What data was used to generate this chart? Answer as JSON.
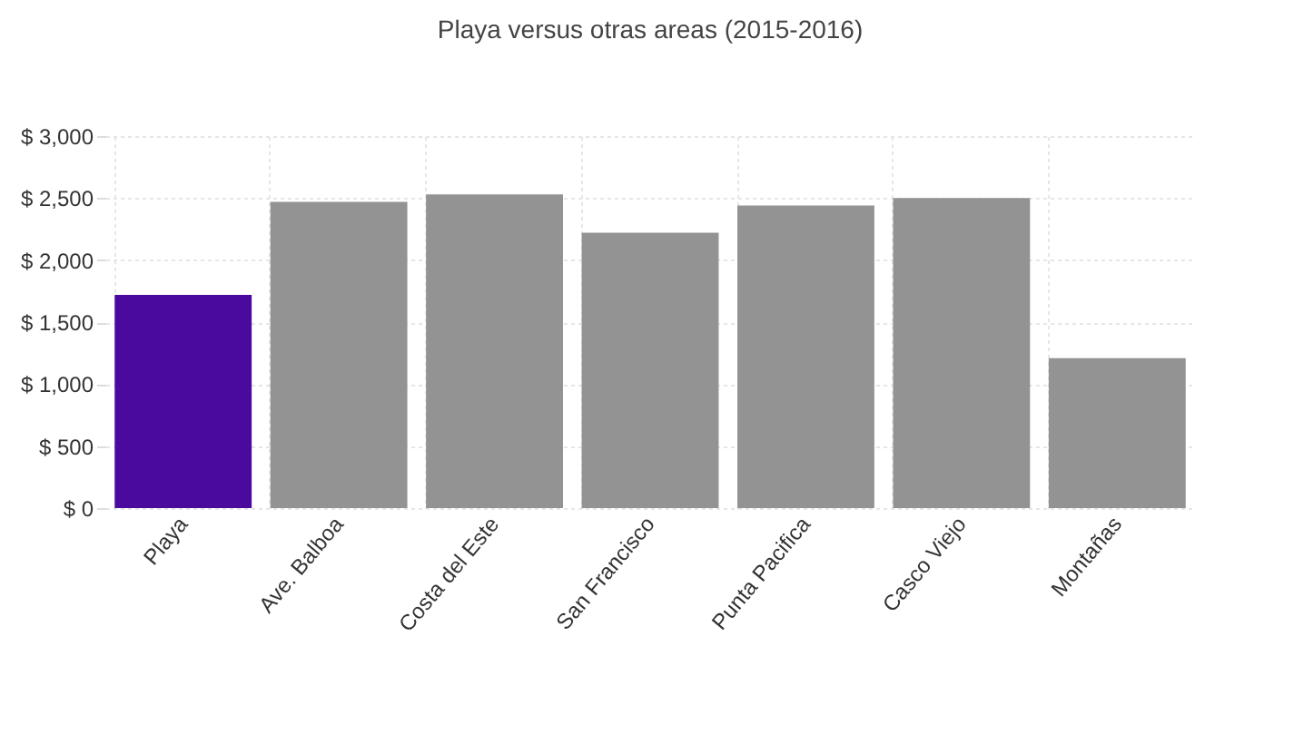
{
  "chart_data": {
    "type": "bar",
    "title": "Playa versus otras areas (2015-2016)",
    "categories": [
      "Playa",
      "Ave. Balboa",
      "Costa del Este",
      "San Francisco",
      "Punta Pacifica",
      "Casco Viejo",
      "Montañas"
    ],
    "values": [
      1720,
      2470,
      2530,
      2220,
      2440,
      2500,
      1210
    ],
    "colors": [
      "#4a0a9e",
      "#939393",
      "#939393",
      "#939393",
      "#939393",
      "#939393",
      "#939393"
    ],
    "ylim": [
      0,
      3000
    ],
    "yticks": [
      {
        "value": 0,
        "label": "$ 0"
      },
      {
        "value": 500,
        "label": "$ 500"
      },
      {
        "value": 1000,
        "label": "$ 1,000"
      },
      {
        "value": 1500,
        "label": "$ 1,500"
      },
      {
        "value": 2000,
        "label": "$ 2,000"
      },
      {
        "value": 2500,
        "label": "$ 2,500"
      },
      {
        "value": 3000,
        "label": "$ 3,000"
      }
    ],
    "grid": true
  }
}
